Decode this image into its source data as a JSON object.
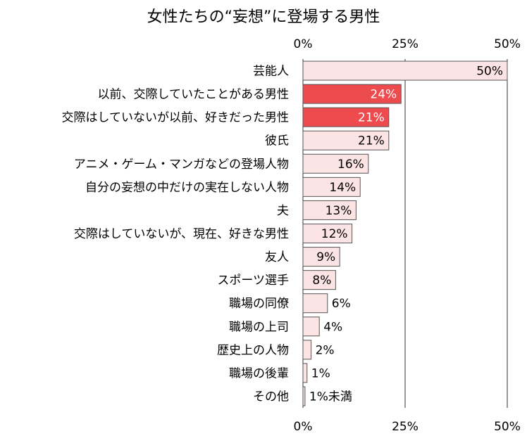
{
  "chart_data": {
    "type": "bar",
    "orientation": "horizontal",
    "title": "女性たちの“妄想”に登場する男性",
    "xlim": [
      0,
      50
    ],
    "x_ticks": [
      "0%",
      "25%",
      "50%"
    ],
    "x_tick_values": [
      0,
      25,
      50
    ],
    "grid": true,
    "tick_labels_position": "top and bottom",
    "colors": {
      "default_fill": "#fde4e4",
      "highlight_fill": "#ee4b4f",
      "stroke": "#555555"
    },
    "categories": [
      "芸能人",
      "以前、交際していたことがある男性",
      "交際はしていないが以前、好きだった男性",
      "彼氏",
      "アニメ・ゲーム・マンガなどの登場人物",
      "自分の妄想の中だけの実在しない人物",
      "夫",
      "交際はしていないが、現在、好きな男性",
      "友人",
      "スポーツ選手",
      "職場の同僚",
      "職場の上司",
      "歴史上の人物",
      "職場の後輩",
      "その他"
    ],
    "values": [
      50,
      24,
      21,
      21,
      16,
      14,
      13,
      12,
      9,
      8,
      6,
      4,
      2,
      1,
      0.5
    ],
    "value_labels": [
      "50%",
      "24%",
      "21%",
      "21%",
      "16%",
      "14%",
      "13%",
      "12%",
      "9%",
      "8%",
      "6%",
      "4%",
      "2%",
      "1%",
      "1%未満"
    ],
    "highlighted": [
      false,
      true,
      true,
      false,
      false,
      false,
      false,
      false,
      false,
      false,
      false,
      false,
      false,
      false,
      false
    ]
  }
}
